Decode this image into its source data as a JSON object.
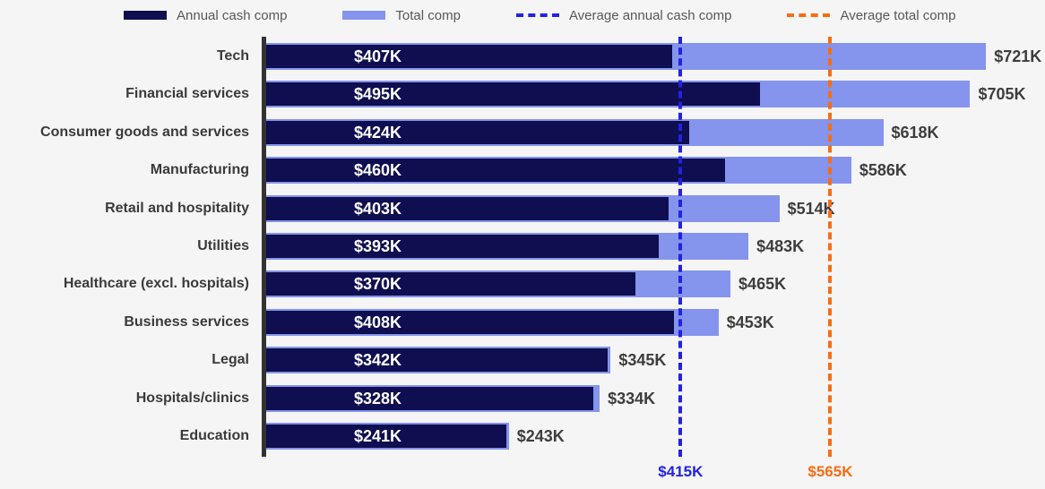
{
  "legend": {
    "items": [
      {
        "label": "Annual cash comp",
        "swatch": "navy-solid-swatch"
      },
      {
        "label": "Total comp",
        "swatch": "periwinkle-solid-swatch"
      },
      {
        "label": "Average annual cash comp",
        "swatch": "blue-dashed-swatch"
      },
      {
        "label": "Average total comp",
        "swatch": "orange-dashed-swatch"
      }
    ]
  },
  "chart_data": {
    "type": "bar",
    "orientation": "horizontal",
    "categories": [
      "Tech",
      "Financial services",
      "Consumer goods and services",
      "Manufacturing",
      "Retail and hospitality",
      "Utilities",
      "Healthcare (excl. hospitals)",
      "Business services",
      "Legal",
      "Hospitals/clinics",
      "Education"
    ],
    "series": [
      {
        "name": "Annual cash comp",
        "color": "#0e0e50",
        "values": [
          407,
          495,
          424,
          460,
          403,
          393,
          370,
          408,
          342,
          328,
          241
        ],
        "labels": [
          "$407K",
          "$495K",
          "$424K",
          "$460K",
          "$403K",
          "$393K",
          "$370K",
          "$408K",
          "$342K",
          "$328K",
          "$241K"
        ]
      },
      {
        "name": "Total comp",
        "color": "#8594ec",
        "values": [
          721,
          705,
          618,
          586,
          514,
          483,
          465,
          453,
          345,
          334,
          243
        ],
        "labels": [
          "$721K",
          "$705K",
          "$618K",
          "$586K",
          "$514K",
          "$483K",
          "$465K",
          "$453K",
          "$345K",
          "$334K",
          "$243K"
        ]
      }
    ],
    "reference_lines": [
      {
        "name": "Average annual cash comp",
        "value": 415,
        "label": "$415K",
        "color": "#2222e0"
      },
      {
        "name": "Average total comp",
        "value": 565,
        "label": "$565K",
        "color": "#f86c12"
      }
    ],
    "xlim": [
      0,
      780
    ],
    "value_unit": "$K",
    "grid": false,
    "legend_position": "top"
  },
  "colors": {
    "background": "#f5f5f6",
    "axis": "#333333",
    "annual_bar": "#0e0e50",
    "total_bar": "#8594ec",
    "avg_annual_line": "#2222e0",
    "avg_total_line": "#f86c12",
    "category_text": "#3a3a3a",
    "value_text": "#3d3d3d",
    "legend_text": "#58585a"
  }
}
